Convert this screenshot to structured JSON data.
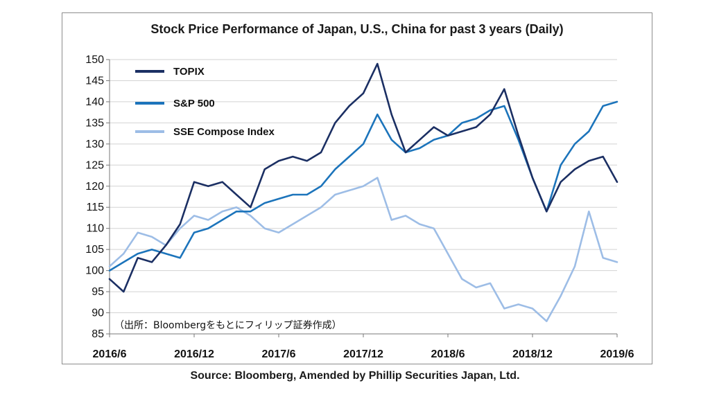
{
  "colors": {
    "topix": "#1b2f63",
    "sp500": "#1c74bb",
    "sse": "#9dbde6",
    "grid": "#d2d2d2"
  },
  "chart_data": {
    "type": "line",
    "title": "Stock Price Performance of Japan, U.S., China for past 3 years (Daily)",
    "xlabel": "",
    "ylabel": "",
    "ylim": [
      85,
      150
    ],
    "yticks": [
      85,
      90,
      95,
      100,
      105,
      110,
      115,
      120,
      125,
      130,
      135,
      140,
      145,
      150
    ],
    "xlim": [
      "2016-06",
      "2019-06"
    ],
    "xtick_labels": [
      "2016/6",
      "2016/12",
      "2017/6",
      "2017/12",
      "2018/6",
      "2018/12",
      "2019/6"
    ],
    "grid": "horizontal",
    "legend_position": "top-left",
    "annotation": "（出所：Bloombergをもとにフィリップ証券作成）",
    "source": "Source: Bloomberg, Amended by Phillip Securities Japan, Ltd.",
    "x": [
      "2016-06",
      "2016-07",
      "2016-08",
      "2016-09",
      "2016-10",
      "2016-11",
      "2016-12",
      "2017-01",
      "2017-02",
      "2017-03",
      "2017-04",
      "2017-05",
      "2017-06",
      "2017-07",
      "2017-08",
      "2017-09",
      "2017-10",
      "2017-11",
      "2017-12",
      "2018-01",
      "2018-02",
      "2018-03",
      "2018-04",
      "2018-05",
      "2018-06",
      "2018-07",
      "2018-08",
      "2018-09",
      "2018-10",
      "2018-11",
      "2018-12",
      "2019-01",
      "2019-02",
      "2019-03",
      "2019-04",
      "2019-05",
      "2019-06"
    ],
    "series": [
      {
        "name": "TOPIX",
        "values": [
          98,
          95,
          103,
          102,
          106,
          111,
          121,
          120,
          121,
          118,
          115,
          124,
          126,
          127,
          126,
          128,
          135,
          139,
          142,
          149,
          137,
          128,
          131,
          134,
          132,
          133,
          134,
          137,
          143,
          132,
          122,
          114,
          121,
          124,
          126,
          127,
          121
        ]
      },
      {
        "name": "S&P 500",
        "values": [
          100,
          102,
          104,
          105,
          104,
          103,
          109,
          110,
          112,
          114,
          114,
          116,
          117,
          118,
          118,
          120,
          124,
          127,
          130,
          137,
          131,
          128,
          129,
          131,
          132,
          135,
          136,
          138,
          139,
          131,
          122,
          114,
          125,
          130,
          133,
          139,
          140
        ]
      },
      {
        "name": "SSE Compose Index",
        "values": [
          101,
          104,
          109,
          108,
          106,
          110,
          113,
          112,
          114,
          115,
          113,
          110,
          109,
          111,
          113,
          115,
          118,
          119,
          120,
          122,
          112,
          113,
          111,
          110,
          104,
          98,
          96,
          97,
          91,
          92,
          91,
          88,
          94,
          101,
          114,
          103,
          102
        ]
      }
    ]
  }
}
